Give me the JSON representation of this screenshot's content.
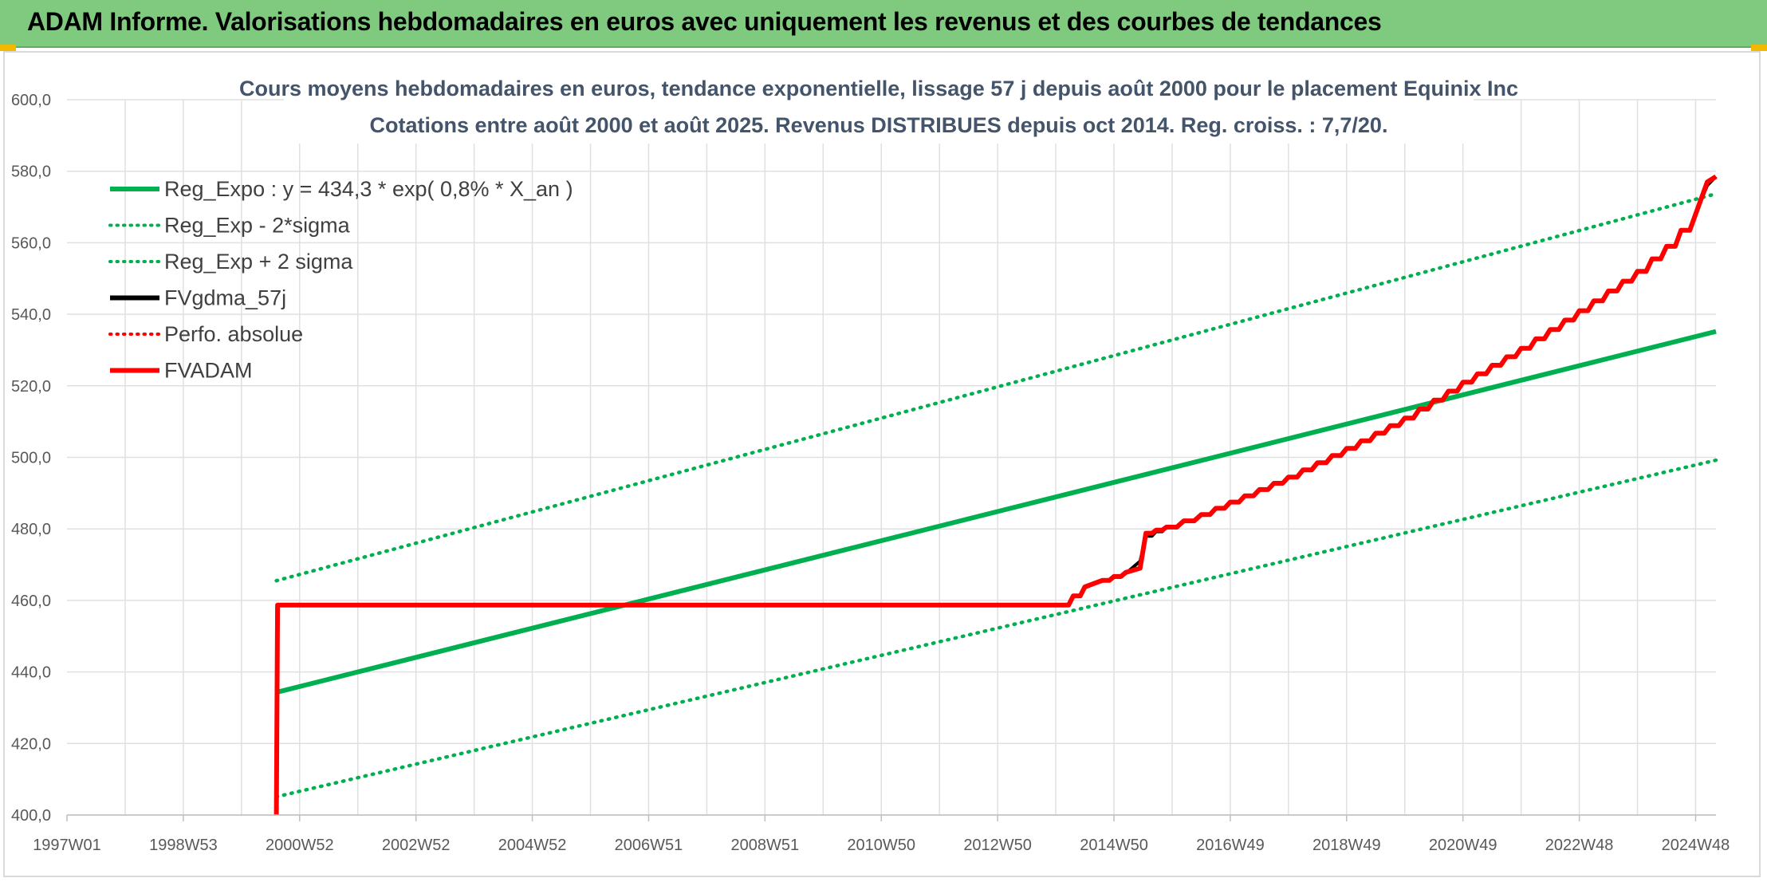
{
  "header": {
    "title": "ADAM Informe. Valorisations hebdomadaires en euros avec uniquement les revenus et des courbes de tendances"
  },
  "colors": {
    "banner": "#7fca7f",
    "trend": "#00b050",
    "fvgdma": "#000000",
    "fvadam": "#ff0000",
    "grid": "#e0e0e0"
  },
  "chart_data": {
    "type": "line",
    "title_line1": "Cours moyens hebdomadaires en euros, tendance exponentielle, lissage 57 j depuis août 2000 pour le placement Equinix Inc",
    "title_line2": "Cotations entre août 2000 et août 2025. Revenus DISTRIBUES depuis oct 2014. Reg. croiss. : 7,7/20.",
    "x_tick_labels": [
      "1997W01",
      "1998W53",
      "2000W52",
      "2002W52",
      "2004W52",
      "2006W51",
      "2008W51",
      "2010W50",
      "2012W50",
      "2014W50",
      "2016W49",
      "2018W49",
      "2020W49",
      "2022W48",
      "2024W48"
    ],
    "x_tick_positions": [
      1997.0,
      1999.0,
      2001.0,
      2003.0,
      2005.0,
      2007.0,
      2009.0,
      2011.0,
      2013.0,
      2015.0,
      2017.0,
      2019.0,
      2021.0,
      2023.0,
      2025.0
    ],
    "xlim": [
      1997.0,
      2025.35
    ],
    "ylim": [
      400,
      600
    ],
    "y_ticks": [
      400,
      420,
      440,
      460,
      480,
      500,
      520,
      540,
      560,
      580,
      600
    ],
    "y_tick_labels": [
      "400,0",
      "420,0",
      "440,0",
      "460,0",
      "480,0",
      "500,0",
      "520,0",
      "540,0",
      "560,0",
      "580,0",
      "600,0"
    ],
    "grid": true,
    "legend_position": "top-left",
    "series": [
      {
        "name": "Reg_Expo : y = 434,3 * exp( 0,8% *  X_an )",
        "color": "#00b050",
        "style": "solid",
        "x": [
          2000.6,
          2025.35
        ],
        "y": [
          434.3,
          535.2
        ]
      },
      {
        "name": "Reg_Exp - 2*sigma",
        "color": "#00b050",
        "style": "dotted",
        "x": [
          2000.6,
          2025.35
        ],
        "y": [
          405.1,
          499.2
        ]
      },
      {
        "name": "Reg_Exp + 2 sigma",
        "color": "#00b050",
        "style": "dotted",
        "x": [
          2000.6,
          2025.35
        ],
        "y": [
          465.5,
          573.7
        ]
      },
      {
        "name": "FVgdma_57j",
        "color": "#000000",
        "style": "solid",
        "x": [
          2000.6,
          2000.62,
          2014.1,
          2014.5,
          2014.8,
          2015.2,
          2015.45,
          2015.55,
          2015.9,
          2016.5,
          2017.0,
          2018.0,
          2019.0,
          2020.0,
          2021.0,
          2022.0,
          2023.0,
          2024.0,
          2024.5,
          2025.0,
          2025.2,
          2025.35
        ],
        "y": [
          400.0,
          458.7,
          458.7,
          463.5,
          465.5,
          467.5,
          471.0,
          478.0,
          480.5,
          484.0,
          487.5,
          494.5,
          502.5,
          511.0,
          521.0,
          530.5,
          541.0,
          552.0,
          559.0,
          568.0,
          576.0,
          578.5
        ]
      },
      {
        "name": "Perfo. absolue",
        "color": "#ff0000",
        "style": "dotted",
        "x": [],
        "y": []
      },
      {
        "name": "FVADAM",
        "color": "#ff0000",
        "style": "solid",
        "x": [
          2000.6,
          2000.62,
          2014.1,
          2014.5,
          2014.8,
          2015.2,
          2015.45,
          2015.55,
          2015.9,
          2016.5,
          2017.0,
          2018.0,
          2019.0,
          2020.0,
          2021.0,
          2022.0,
          2023.0,
          2024.0,
          2024.5,
          2025.0,
          2025.2,
          2025.35
        ],
        "y": [
          400.0,
          458.7,
          458.7,
          463.8,
          465.6,
          467.8,
          469.0,
          478.8,
          480.5,
          484.0,
          487.5,
          494.5,
          502.5,
          511.0,
          521.0,
          530.5,
          541.0,
          552.0,
          559.0,
          568.0,
          577.0,
          578.5
        ]
      }
    ]
  }
}
